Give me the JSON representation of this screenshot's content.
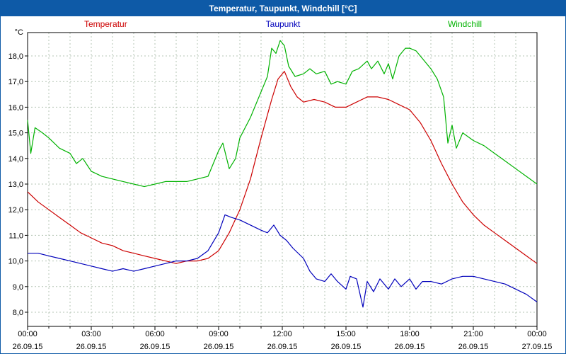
{
  "window": {
    "title": "Temperatur, Taupunkt, Windchill [°C]"
  },
  "legend": [
    {
      "label": "Temperatur",
      "color": "#cc0000"
    },
    {
      "label": "Taupunkt",
      "color": "#0000bb"
    },
    {
      "label": "Windchill",
      "color": "#00b200"
    }
  ],
  "colors": {
    "titlebar": "#0e5aa7",
    "grid": "#b4c4b4",
    "axis": "#000000",
    "plot_background": "#ffffff"
  },
  "chart_data": {
    "type": "line",
    "title": "Temperatur, Taupunkt, Windchill [°C]",
    "unit_label": "°C",
    "xlabel": "",
    "ylabel": "°C",
    "ylim": [
      8,
      18
    ],
    "xlim_hours": [
      0,
      24
    ],
    "grid": "dashed, vertical every hour, horizontal every 1°C",
    "legend_position": "top",
    "y_ticks": [
      {
        "v": 8,
        "label": "8,0"
      },
      {
        "v": 9,
        "label": "9,0"
      },
      {
        "v": 10,
        "label": "10,0"
      },
      {
        "v": 11,
        "label": "11,0"
      },
      {
        "v": 12,
        "label": "12,0"
      },
      {
        "v": 13,
        "label": "13,0"
      },
      {
        "v": 14,
        "label": "14,0"
      },
      {
        "v": 15,
        "label": "15,0"
      },
      {
        "v": 16,
        "label": "16,0"
      },
      {
        "v": 17,
        "label": "17,0"
      },
      {
        "v": 18,
        "label": "18,0"
      }
    ],
    "x_ticks": [
      {
        "hour": 0,
        "time": "00:00",
        "date": "26.09.15"
      },
      {
        "hour": 3,
        "time": "03:00",
        "date": "26.09.15"
      },
      {
        "hour": 6,
        "time": "06:00",
        "date": "26.09.15"
      },
      {
        "hour": 9,
        "time": "09:00",
        "date": "26.09.15"
      },
      {
        "hour": 12,
        "time": "12:00",
        "date": "26.09.15"
      },
      {
        "hour": 15,
        "time": "15:00",
        "date": "26.09.15"
      },
      {
        "hour": 18,
        "time": "18:00",
        "date": "26.09.15"
      },
      {
        "hour": 21,
        "time": "21:00",
        "date": "26.09.15"
      },
      {
        "hour": 24,
        "time": "00:00",
        "date": "27.09.15"
      }
    ],
    "series": [
      {
        "name": "Temperatur",
        "color": "#cc0000",
        "points": [
          [
            0,
            12.7
          ],
          [
            0.5,
            12.3
          ],
          [
            1,
            12.0
          ],
          [
            1.5,
            11.7
          ],
          [
            2,
            11.4
          ],
          [
            2.5,
            11.1
          ],
          [
            3,
            10.9
          ],
          [
            3.5,
            10.7
          ],
          [
            4,
            10.6
          ],
          [
            4.5,
            10.4
          ],
          [
            5,
            10.3
          ],
          [
            5.5,
            10.2
          ],
          [
            6,
            10.1
          ],
          [
            6.5,
            10.0
          ],
          [
            7,
            9.9
          ],
          [
            7.5,
            10.0
          ],
          [
            8,
            10.0
          ],
          [
            8.5,
            10.1
          ],
          [
            9,
            10.4
          ],
          [
            9.5,
            11.1
          ],
          [
            10,
            12.0
          ],
          [
            10.5,
            13.2
          ],
          [
            11,
            14.8
          ],
          [
            11.5,
            16.3
          ],
          [
            11.8,
            17.1
          ],
          [
            12.1,
            17.4
          ],
          [
            12.4,
            16.8
          ],
          [
            12.7,
            16.4
          ],
          [
            13,
            16.2
          ],
          [
            13.5,
            16.3
          ],
          [
            14,
            16.2
          ],
          [
            14.5,
            16.0
          ],
          [
            15,
            16.0
          ],
          [
            15.5,
            16.2
          ],
          [
            16,
            16.4
          ],
          [
            16.5,
            16.4
          ],
          [
            17,
            16.3
          ],
          [
            17.5,
            16.1
          ],
          [
            18,
            15.9
          ],
          [
            18.5,
            15.4
          ],
          [
            19,
            14.7
          ],
          [
            19.5,
            13.8
          ],
          [
            20,
            13.0
          ],
          [
            20.5,
            12.3
          ],
          [
            21,
            11.8
          ],
          [
            21.5,
            11.4
          ],
          [
            22,
            11.1
          ],
          [
            22.5,
            10.8
          ],
          [
            23,
            10.5
          ],
          [
            23.5,
            10.2
          ],
          [
            24,
            9.9
          ]
        ]
      },
      {
        "name": "Taupunkt",
        "color": "#0000bb",
        "points": [
          [
            0,
            10.3
          ],
          [
            0.5,
            10.3
          ],
          [
            1,
            10.2
          ],
          [
            1.5,
            10.1
          ],
          [
            2,
            10.0
          ],
          [
            2.5,
            9.9
          ],
          [
            3,
            9.8
          ],
          [
            3.5,
            9.7
          ],
          [
            4,
            9.6
          ],
          [
            4.5,
            9.7
          ],
          [
            5,
            9.6
          ],
          [
            5.5,
            9.7
          ],
          [
            6,
            9.8
          ],
          [
            6.5,
            9.9
          ],
          [
            7,
            10.0
          ],
          [
            7.5,
            10.0
          ],
          [
            8,
            10.1
          ],
          [
            8.5,
            10.4
          ],
          [
            9,
            11.1
          ],
          [
            9.3,
            11.8
          ],
          [
            9.6,
            11.7
          ],
          [
            10,
            11.6
          ],
          [
            10.5,
            11.4
          ],
          [
            11,
            11.2
          ],
          [
            11.3,
            11.1
          ],
          [
            11.6,
            11.4
          ],
          [
            11.9,
            11.0
          ],
          [
            12.2,
            10.8
          ],
          [
            12.5,
            10.5
          ],
          [
            13,
            10.1
          ],
          [
            13.3,
            9.6
          ],
          [
            13.6,
            9.3
          ],
          [
            14,
            9.2
          ],
          [
            14.3,
            9.5
          ],
          [
            14.6,
            9.2
          ],
          [
            15,
            8.9
          ],
          [
            15.2,
            9.4
          ],
          [
            15.5,
            9.3
          ],
          [
            15.8,
            8.2
          ],
          [
            16,
            9.2
          ],
          [
            16.3,
            8.8
          ],
          [
            16.6,
            9.3
          ],
          [
            17,
            8.9
          ],
          [
            17.3,
            9.3
          ],
          [
            17.6,
            9.0
          ],
          [
            18,
            9.3
          ],
          [
            18.3,
            8.9
          ],
          [
            18.6,
            9.2
          ],
          [
            19,
            9.2
          ],
          [
            19.5,
            9.1
          ],
          [
            20,
            9.3
          ],
          [
            20.5,
            9.4
          ],
          [
            21,
            9.4
          ],
          [
            21.5,
            9.3
          ],
          [
            22,
            9.2
          ],
          [
            22.5,
            9.1
          ],
          [
            23,
            8.9
          ],
          [
            23.5,
            8.7
          ],
          [
            24,
            8.4
          ]
        ]
      },
      {
        "name": "Windchill",
        "color": "#00b200",
        "points": [
          [
            0,
            15.5
          ],
          [
            0.15,
            14.2
          ],
          [
            0.35,
            15.2
          ],
          [
            0.7,
            15.0
          ],
          [
            1,
            14.8
          ],
          [
            1.5,
            14.4
          ],
          [
            2,
            14.2
          ],
          [
            2.3,
            13.8
          ],
          [
            2.6,
            14.0
          ],
          [
            3,
            13.5
          ],
          [
            3.5,
            13.3
          ],
          [
            4,
            13.2
          ],
          [
            4.5,
            13.1
          ],
          [
            5,
            13.0
          ],
          [
            5.5,
            12.9
          ],
          [
            6,
            13.0
          ],
          [
            6.5,
            13.1
          ],
          [
            7,
            13.1
          ],
          [
            7.5,
            13.1
          ],
          [
            8,
            13.2
          ],
          [
            8.5,
            13.3
          ],
          [
            9,
            14.3
          ],
          [
            9.2,
            14.6
          ],
          [
            9.5,
            13.6
          ],
          [
            9.8,
            14.0
          ],
          [
            10,
            14.8
          ],
          [
            10.5,
            15.6
          ],
          [
            11,
            16.6
          ],
          [
            11.3,
            17.2
          ],
          [
            11.5,
            18.3
          ],
          [
            11.7,
            18.1
          ],
          [
            11.9,
            18.6
          ],
          [
            12.1,
            18.4
          ],
          [
            12.3,
            17.6
          ],
          [
            12.6,
            17.2
          ],
          [
            13,
            17.3
          ],
          [
            13.3,
            17.5
          ],
          [
            13.6,
            17.3
          ],
          [
            14,
            17.4
          ],
          [
            14.3,
            16.9
          ],
          [
            14.6,
            17.0
          ],
          [
            15,
            16.9
          ],
          [
            15.3,
            17.4
          ],
          [
            15.6,
            17.5
          ],
          [
            16,
            17.8
          ],
          [
            16.2,
            17.5
          ],
          [
            16.5,
            17.8
          ],
          [
            16.8,
            17.3
          ],
          [
            17,
            17.7
          ],
          [
            17.2,
            17.1
          ],
          [
            17.5,
            18.0
          ],
          [
            17.8,
            18.3
          ],
          [
            18,
            18.3
          ],
          [
            18.3,
            18.2
          ],
          [
            18.6,
            17.9
          ],
          [
            19,
            17.5
          ],
          [
            19.3,
            17.1
          ],
          [
            19.6,
            16.4
          ],
          [
            19.8,
            14.6
          ],
          [
            20,
            15.3
          ],
          [
            20.2,
            14.4
          ],
          [
            20.5,
            15.0
          ],
          [
            21,
            14.7
          ],
          [
            21.5,
            14.5
          ],
          [
            22,
            14.2
          ],
          [
            22.5,
            13.9
          ],
          [
            23,
            13.6
          ],
          [
            23.5,
            13.3
          ],
          [
            24,
            13.0
          ]
        ]
      }
    ]
  }
}
